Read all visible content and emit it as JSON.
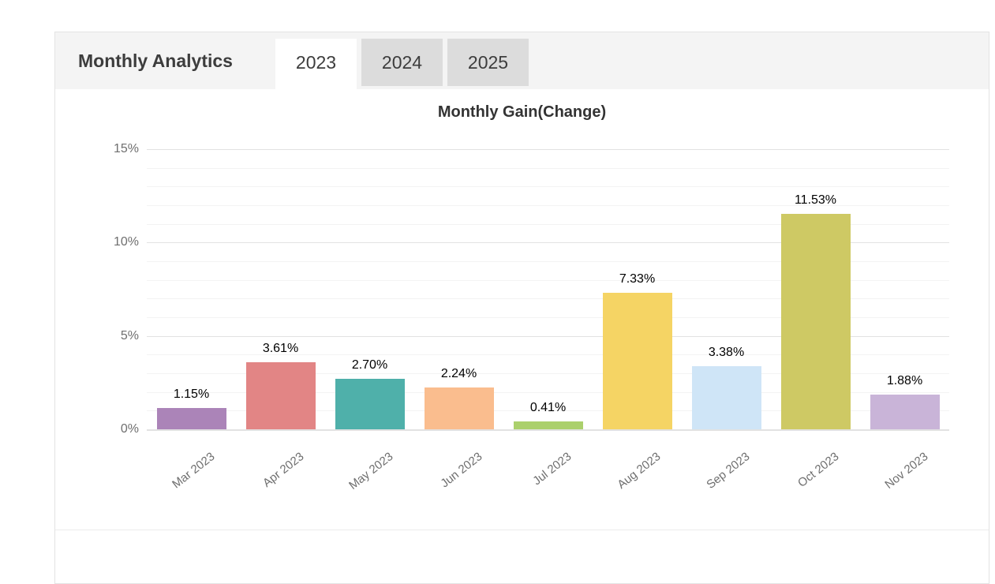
{
  "header": {
    "title": "Monthly Analytics",
    "tabs": [
      {
        "label": "2023",
        "active": true
      },
      {
        "label": "2024",
        "active": false
      },
      {
        "label": "2025",
        "active": false
      }
    ]
  },
  "chart_data": {
    "type": "bar",
    "title": "Monthly Gain(Change)",
    "categories": [
      "Mar 2023",
      "Apr 2023",
      "May 2023",
      "Jun 2023",
      "Jul 2023",
      "Aug 2023",
      "Sep 2023",
      "Oct 2023",
      "Nov 2023"
    ],
    "values": [
      1.15,
      3.61,
      2.7,
      2.24,
      0.41,
      7.33,
      3.38,
      11.53,
      1.88
    ],
    "labels": [
      "1.15%",
      "3.61%",
      "2.70%",
      "2.24%",
      "0.41%",
      "7.33%",
      "3.38%",
      "11.53%",
      "1.88%"
    ],
    "colors": [
      "#ab84b8",
      "#e28585",
      "#4fb0aa",
      "#fabd8e",
      "#abd06c",
      "#f5d464",
      "#cfe5f7",
      "#cec964",
      "#c9b4d8"
    ],
    "xlabel": "",
    "ylabel": "",
    "ylim": [
      0,
      15
    ],
    "yticks": [
      0,
      5,
      10,
      15
    ],
    "ytick_labels": [
      "0%",
      "5%",
      "10%",
      "15%"
    ],
    "minor_step": 1,
    "grid": true,
    "legend": "none"
  },
  "theme": {
    "header_bg": "#f4f4f4",
    "tab_inactive_bg": "#dcdcdc",
    "tab_active_bg": "#ffffff",
    "grid_major": "#e2e2e2",
    "grid_minor": "#f3f3f3",
    "axis_text": "#6f6f6f",
    "value_text": "#000000"
  }
}
